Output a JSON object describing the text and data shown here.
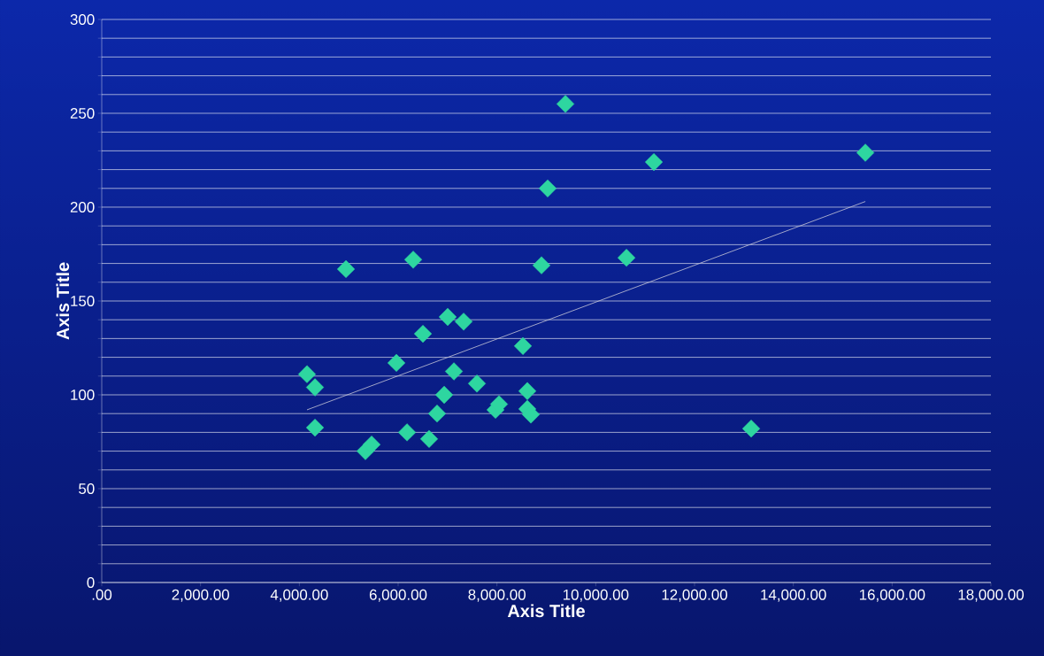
{
  "chart_data": {
    "type": "scatter",
    "xlabel": "Axis Title",
    "ylabel": "Axis Title",
    "xlim": [
      0,
      18000
    ],
    "ylim": [
      0,
      300
    ],
    "xticks": [
      {
        "value": 0,
        "label": ".00"
      },
      {
        "value": 2000,
        "label": "2,000.00"
      },
      {
        "value": 4000,
        "label": "4,000.00"
      },
      {
        "value": 6000,
        "label": "6,000.00"
      },
      {
        "value": 8000,
        "label": "8,000.00"
      },
      {
        "value": 10000,
        "label": "10,000.00"
      },
      {
        "value": 12000,
        "label": "12,000.00"
      },
      {
        "value": 14000,
        "label": "14,000.00"
      },
      {
        "value": 16000,
        "label": "16,000.00"
      },
      {
        "value": 18000,
        "label": "18,000.00"
      }
    ],
    "yticks": [
      0,
      {
        "value": 10,
        "label": null
      },
      {
        "value": 20,
        "label": null
      },
      {
        "value": 30,
        "label": null
      },
      {
        "value": 40,
        "label": null
      },
      50,
      {
        "value": 60,
        "label": null
      },
      {
        "value": 70,
        "label": null
      },
      {
        "value": 80,
        "label": null
      },
      {
        "value": 90,
        "label": null
      },
      100,
      {
        "value": 110,
        "label": null
      },
      {
        "value": 120,
        "label": null
      },
      {
        "value": 130,
        "label": null
      },
      {
        "value": 140,
        "label": null
      },
      150,
      {
        "value": 160,
        "label": null
      },
      {
        "value": 170,
        "label": null
      },
      {
        "value": 180,
        "label": null
      },
      {
        "value": 190,
        "label": null
      },
      200,
      {
        "value": 210,
        "label": null
      },
      {
        "value": 220,
        "label": null
      },
      {
        "value": 230,
        "label": null
      },
      {
        "value": 240,
        "label": null
      },
      250,
      {
        "value": 260,
        "label": null
      },
      {
        "value": 270,
        "label": null
      },
      {
        "value": 280,
        "label": null
      },
      {
        "value": 290,
        "label": null
      },
      300
    ],
    "grid": "y",
    "series": [
      {
        "marker": "diamond",
        "color": "#2ed6a0",
        "x": [
          4155,
          4317,
          4317,
          4944,
          5338,
          5463,
          5965,
          6180,
          6305,
          6502,
          6627,
          6788,
          6932,
          7003,
          7129,
          7326,
          7595,
          7971,
          8042,
          8526,
          8615,
          8615,
          8687,
          8902,
          9027,
          9386,
          10622,
          11177,
          13147,
          15458
        ],
        "values": [
          111,
          104,
          82.5,
          167,
          70,
          73.5,
          117,
          80,
          172,
          132.5,
          76.5,
          90,
          100,
          141.5,
          112.5,
          139,
          106,
          92,
          95,
          126,
          102,
          92.5,
          89.5,
          169,
          210,
          255,
          173,
          224,
          82,
          229
        ]
      },
      {
        "type": "line",
        "marker": "none",
        "color": "#c8c8d8",
        "x": [
          4155,
          15458
        ],
        "values": [
          92,
          203
        ]
      }
    ]
  }
}
